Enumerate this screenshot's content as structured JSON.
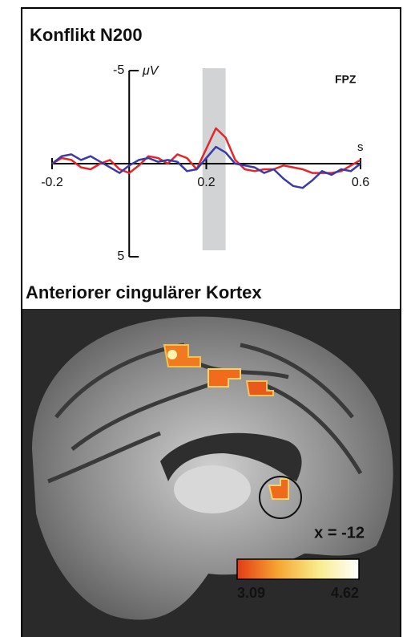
{
  "chart_data": [
    {
      "type": "line",
      "title": "Konflikt N200",
      "annotation": "FPZ",
      "x_label": "s",
      "y_label": "μV",
      "x": [
        -0.2,
        -0.175,
        -0.15,
        -0.125,
        -0.1,
        -0.075,
        -0.05,
        -0.025,
        0,
        0.025,
        0.05,
        0.075,
        0.1,
        0.125,
        0.15,
        0.175,
        0.2,
        0.225,
        0.25,
        0.275,
        0.3,
        0.325,
        0.35,
        0.375,
        0.4,
        0.425,
        0.45,
        0.475,
        0.5,
        0.525,
        0.55,
        0.575,
        0.6
      ],
      "series": [
        {
          "color": "#e3262a",
          "values": [
            0,
            -0.3,
            -0.2,
            0.2,
            0.3,
            0,
            -0.2,
            0.3,
            0.5,
            0.1,
            -0.4,
            -0.3,
            0,
            -0.5,
            -0.3,
            0.3,
            -0.8,
            -1.9,
            -1.4,
            -0.2,
            0.3,
            0.4,
            0.3,
            0.3,
            0.1,
            0.2,
            0.3,
            0.5,
            0.5,
            0.5,
            0.4,
            0.1,
            -0.2
          ]
        },
        {
          "color": "#3a3aa8",
          "values": [
            0,
            -0.4,
            -0.5,
            -0.2,
            -0.4,
            -0.1,
            0.2,
            0.5,
            0.1,
            -0.2,
            -0.3,
            -0.1,
            -0.2,
            -0.1,
            0.4,
            0.3,
            -0.3,
            -0.9,
            -0.6,
            0,
            0.1,
            0.2,
            0.5,
            0.3,
            0.8,
            1.2,
            1.3,
            0.9,
            0.4,
            0.6,
            0.3,
            0.4,
            0
          ]
        }
      ],
      "xlim": [
        -0.2,
        0.6
      ],
      "xticks": [
        -0.2,
        0.2,
        0.6
      ],
      "ylim": [
        -5,
        5
      ],
      "yticks": [
        -5,
        5
      ],
      "y_reversed": true,
      "highlight": [
        0.19,
        0.25
      ],
      "highlight_color": "#d2d3d5"
    },
    {
      "type": "brain-map",
      "title": "Anteriorer cingulärer Kortex",
      "annotation": "x = -12",
      "colorbar": {
        "range": [
          3.09,
          4.62
        ],
        "ticks": [
          3.09,
          4.62
        ],
        "colors": [
          "#e33b17",
          "#f6a531",
          "#f8ec8c",
          "#ffffff"
        ]
      }
    }
  ]
}
